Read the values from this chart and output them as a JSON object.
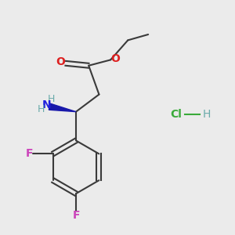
{
  "background_color": "#ebebeb",
  "atom_colors": {
    "C": "#2f4f4f",
    "H": "#6aabab",
    "N": "#2020dd",
    "O": "#dd2020",
    "F": "#cc44bb",
    "Cl": "#3aaa3a"
  },
  "bond_color": "#3a3a3a",
  "wedge_color": "#1818aa",
  "hcl_cl_color": "#3aaa3a",
  "hcl_h_color": "#6aabab"
}
